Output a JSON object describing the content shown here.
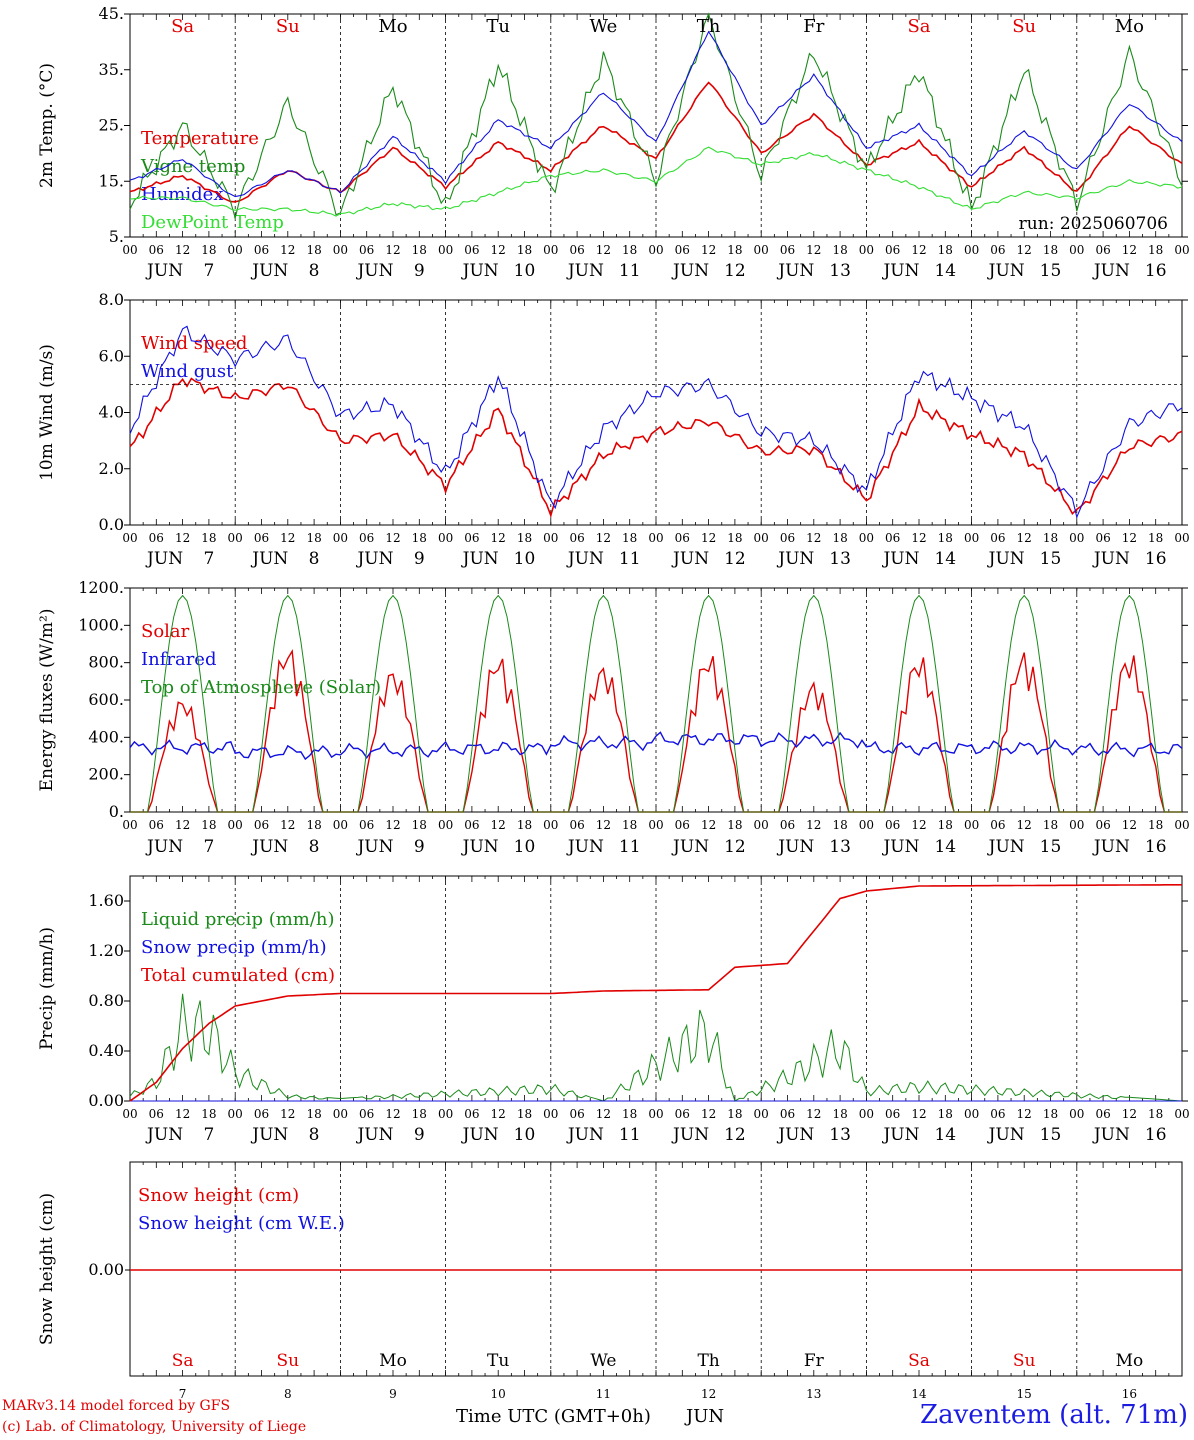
{
  "run_label": "run: 2025060706",
  "top_days": [
    {
      "abbr": "Sa",
      "color": "#e00000"
    },
    {
      "abbr": "Su",
      "color": "#e00000"
    },
    {
      "abbr": "Mo",
      "color": "#000000"
    },
    {
      "abbr": "Tu",
      "color": "#000000"
    },
    {
      "abbr": "We",
      "color": "#000000"
    },
    {
      "abbr": "Th",
      "color": "#000000"
    },
    {
      "abbr": "Fr",
      "color": "#000000"
    },
    {
      "abbr": "Sa",
      "color": "#e00000"
    },
    {
      "abbr": "Su",
      "color": "#e00000"
    },
    {
      "abbr": "Mo",
      "color": "#000000"
    }
  ],
  "hour_ticks": [
    "00",
    "06",
    "12",
    "18"
  ],
  "day_labels": [
    "JUN  7",
    "JUN  8",
    "JUN  9",
    "JUN 10",
    "JUN 11",
    "JUN 12",
    "JUN 13",
    "JUN 14",
    "JUN 15",
    "JUN 16"
  ],
  "bottom_day_numbers": [
    "7",
    "8",
    "9",
    "10",
    "11",
    "12",
    "13",
    "14",
    "15",
    "16"
  ],
  "axis_bottom_label": "Time UTC (GMT+0h)",
  "axis_bottom_month": "JUN",
  "footer_left_1": "MARv3.14 model forced by GFS",
  "footer_left_2": "(c) Lab. of Climatology, University of Liege",
  "footer_right": "Zaventem (alt. 71m)",
  "colors": {
    "red": "#e00000",
    "green": "#1a8a1a",
    "blue": "#1010e0",
    "lightgreen": "#33dd33"
  },
  "chart_data": [
    {
      "type": "line",
      "ylabel": "2m Temp. (°C)",
      "ylim": [
        5,
        45
      ],
      "yticks": [
        "5.",
        "15.",
        "25.",
        "35.",
        "45."
      ],
      "x": [
        0,
        12,
        24,
        36,
        48,
        60,
        72,
        84,
        96,
        108,
        120,
        132,
        144,
        156,
        168,
        180,
        192,
        204,
        216,
        228,
        240
      ],
      "series": [
        {
          "name": "Temperature",
          "color": "red",
          "values": [
            13,
            16,
            11,
            17,
            13,
            21,
            14,
            22,
            17,
            25,
            19,
            33,
            20,
            27,
            18,
            22,
            14,
            21,
            13,
            25,
            18
          ]
        },
        {
          "name": "Vigne temp",
          "color": "green",
          "values": [
            11,
            25,
            10,
            29,
            9,
            32,
            10,
            36,
            13,
            37,
            15,
            45,
            16,
            38,
            17,
            35,
            10,
            35,
            11,
            38,
            15
          ]
        },
        {
          "name": "Humidex",
          "color": "blue",
          "values": [
            15,
            19,
            12,
            17,
            13,
            23,
            15,
            26,
            21,
            31,
            22,
            42,
            25,
            34,
            21,
            25,
            16,
            24,
            17,
            29,
            22
          ]
        },
        {
          "name": "DewPoint Temp",
          "color": "lightgreen",
          "values": [
            12,
            12,
            10,
            10,
            9,
            11,
            10,
            13,
            16,
            17,
            15,
            21,
            18,
            20,
            17,
            14,
            10,
            13,
            12,
            15,
            14
          ]
        }
      ]
    },
    {
      "type": "line",
      "ylabel": "10m Wind (m/s)",
      "ylim": [
        0,
        8
      ],
      "yticks": [
        "0.0",
        "2.0",
        "4.0",
        "6.0",
        "8.0"
      ],
      "ref_line": 5,
      "x": [
        0,
        12,
        24,
        36,
        48,
        60,
        72,
        84,
        96,
        108,
        120,
        132,
        144,
        156,
        168,
        180,
        192,
        204,
        216,
        228,
        240
      ],
      "series": [
        {
          "name": "Wind speed",
          "color": "red",
          "values": [
            2.7,
            5.2,
            4.5,
            5.0,
            3.0,
            3.2,
            1.4,
            4.1,
            0.5,
            2.5,
            3.3,
            3.7,
            2.6,
            2.7,
            0.9,
            4.2,
            3.2,
            2.5,
            0.4,
            2.8,
            3.2
          ]
        },
        {
          "name": "Wind gust",
          "color": "blue",
          "values": [
            3.4,
            6.9,
            5.9,
            6.6,
            3.9,
            4.3,
            1.8,
            5.3,
            0.7,
            3.4,
            4.7,
            5.0,
            3.3,
            3.0,
            1.2,
            5.4,
            4.5,
            3.5,
            0.5,
            3.6,
            4.3
          ]
        }
      ]
    },
    {
      "type": "line",
      "ylabel": "Energy fluxes (W/m²)",
      "ylim": [
        0,
        1200
      ],
      "yticks": [
        "0.",
        "200.",
        "400.",
        "600.",
        "800.",
        "1000.",
        "1200."
      ],
      "x_hours": 240,
      "series": [
        {
          "name": "Solar",
          "color": "red",
          "daily_peak": [
            620,
            900,
            780,
            850,
            800,
            860,
            710,
            850,
            870,
            860
          ]
        },
        {
          "name": "Infrared",
          "color": "blue",
          "daily_mean": [
            345,
            320,
            330,
            340,
            370,
            390,
            385,
            340,
            345,
            335
          ]
        },
        {
          "name": "Top of Atmosphere (Solar)",
          "color": "green",
          "daily_peak": [
            1160,
            1160,
            1160,
            1160,
            1160,
            1160,
            1160,
            1160,
            1160,
            1160
          ]
        }
      ]
    },
    {
      "type": "line",
      "ylabel": "Precip (mm/h)",
      "ylim": [
        0,
        1.8
      ],
      "yticks": [
        "0.00",
        "0.40",
        "0.80",
        "1.20",
        "1.60"
      ],
      "x": [
        0,
        6,
        12,
        18,
        24,
        36,
        48,
        96,
        108,
        132,
        138,
        150,
        162,
        168,
        180,
        240
      ],
      "series": [
        {
          "name": "Liquid precip (mm/h)",
          "color": "green",
          "values": [
            0.05,
            0.2,
            0.78,
            0.75,
            0.3,
            0.05,
            0.02,
            0.13,
            0.0,
            0.75,
            0.0,
            0.25,
            0.58,
            0.1,
            0.15,
            0.0
          ]
        },
        {
          "name": "Snow precip (mm/h)",
          "color": "blue",
          "values": [
            0,
            0,
            0,
            0,
            0,
            0,
            0,
            0,
            0,
            0,
            0,
            0,
            0,
            0,
            0,
            0
          ]
        },
        {
          "name": "Total cumulated (cm)",
          "color": "red",
          "values": [
            0.0,
            0.15,
            0.42,
            0.62,
            0.76,
            0.84,
            0.86,
            0.86,
            0.88,
            0.89,
            1.07,
            1.1,
            1.62,
            1.68,
            1.72,
            1.73
          ]
        }
      ]
    },
    {
      "type": "line",
      "ylabel": "Snow height (cm)",
      "yticks": [
        "0.00"
      ],
      "x": [
        0,
        240
      ],
      "series": [
        {
          "name": "Snow height (cm)",
          "color": "red",
          "values": [
            0,
            0
          ]
        },
        {
          "name": "Snow height (cm W.E.)",
          "color": "blue",
          "values": [
            0,
            0
          ]
        }
      ]
    }
  ]
}
